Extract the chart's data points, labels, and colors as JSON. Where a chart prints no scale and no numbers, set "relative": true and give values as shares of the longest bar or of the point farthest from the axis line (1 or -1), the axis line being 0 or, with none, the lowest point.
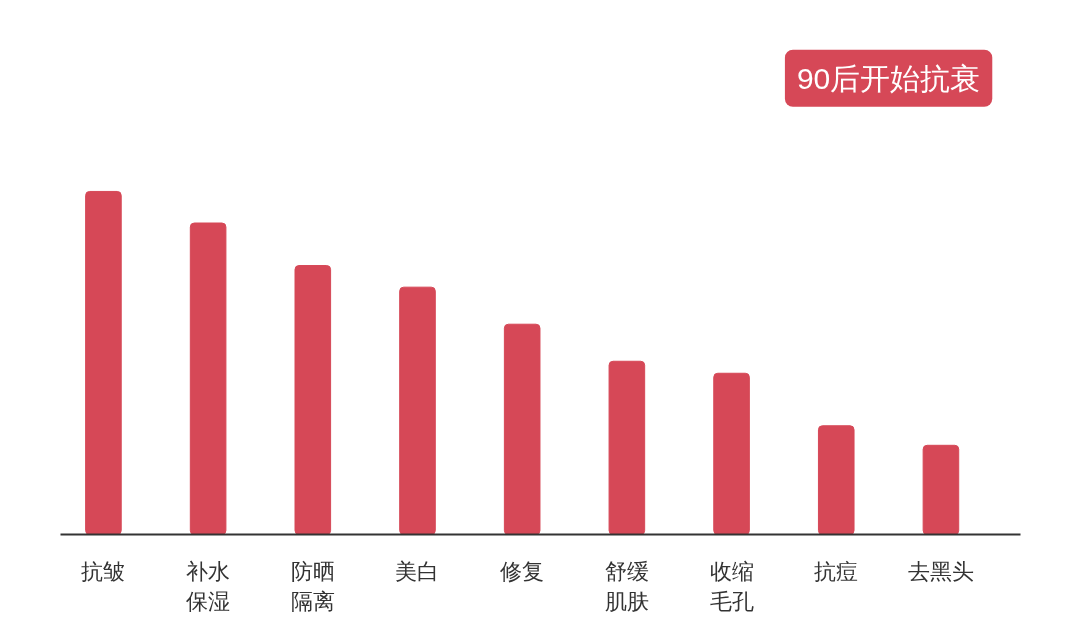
{
  "chart_data": {
    "type": "bar",
    "title": "90后开始抗衰",
    "relative": true,
    "categories": [
      "抗皱",
      "补水保湿",
      "防晒隔离",
      "美白",
      "修复",
      "舒缓肌肤",
      "收缩毛孔",
      "抗痘",
      "去黑头"
    ],
    "values": [
      1,
      0.908,
      0.784,
      0.721,
      0.613,
      0.505,
      0.47,
      0.317,
      0.26
    ],
    "color": "#d64857",
    "grid": false
  }
}
